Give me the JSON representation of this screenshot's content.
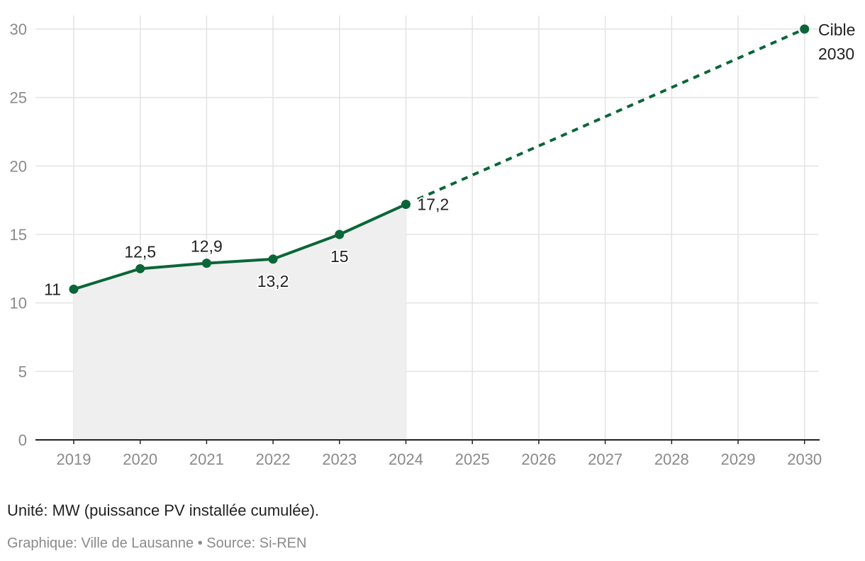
{
  "chart_data": {
    "type": "line",
    "x": [
      2019,
      2020,
      2021,
      2022,
      2023,
      2024,
      2025,
      2026,
      2027,
      2028,
      2029,
      2030
    ],
    "x_tick_labels": [
      "2019",
      "2020",
      "2021",
      "2022",
      "2023",
      "2024",
      "2025",
      "2026",
      "2027",
      "2028",
      "2029",
      "2030"
    ],
    "y_tick_labels": [
      "0",
      "5",
      "10",
      "15",
      "20",
      "25",
      "30"
    ],
    "ylim": [
      0,
      30
    ],
    "grid": true,
    "series": [
      {
        "style": "solid-with-area",
        "x": [
          2019,
          2020,
          2021,
          2022,
          2023,
          2024
        ],
        "values": [
          11,
          12.5,
          12.9,
          13.2,
          15,
          17.2
        ],
        "labels": [
          "11",
          "12,5",
          "12,9",
          "13,2",
          "15",
          "17,2"
        ]
      },
      {
        "style": "dashed",
        "x": [
          2024,
          2030
        ],
        "values": [
          17.2,
          30
        ]
      }
    ],
    "annotation": {
      "line1": "Cible",
      "line2": "2030"
    },
    "color": "#0a6638",
    "area_color": "#efefef"
  },
  "footer": {
    "note": "Unité: MW (puissance PV installée cumulée).",
    "source": "Graphique: Ville de Lausanne • Source: Si-REN"
  }
}
